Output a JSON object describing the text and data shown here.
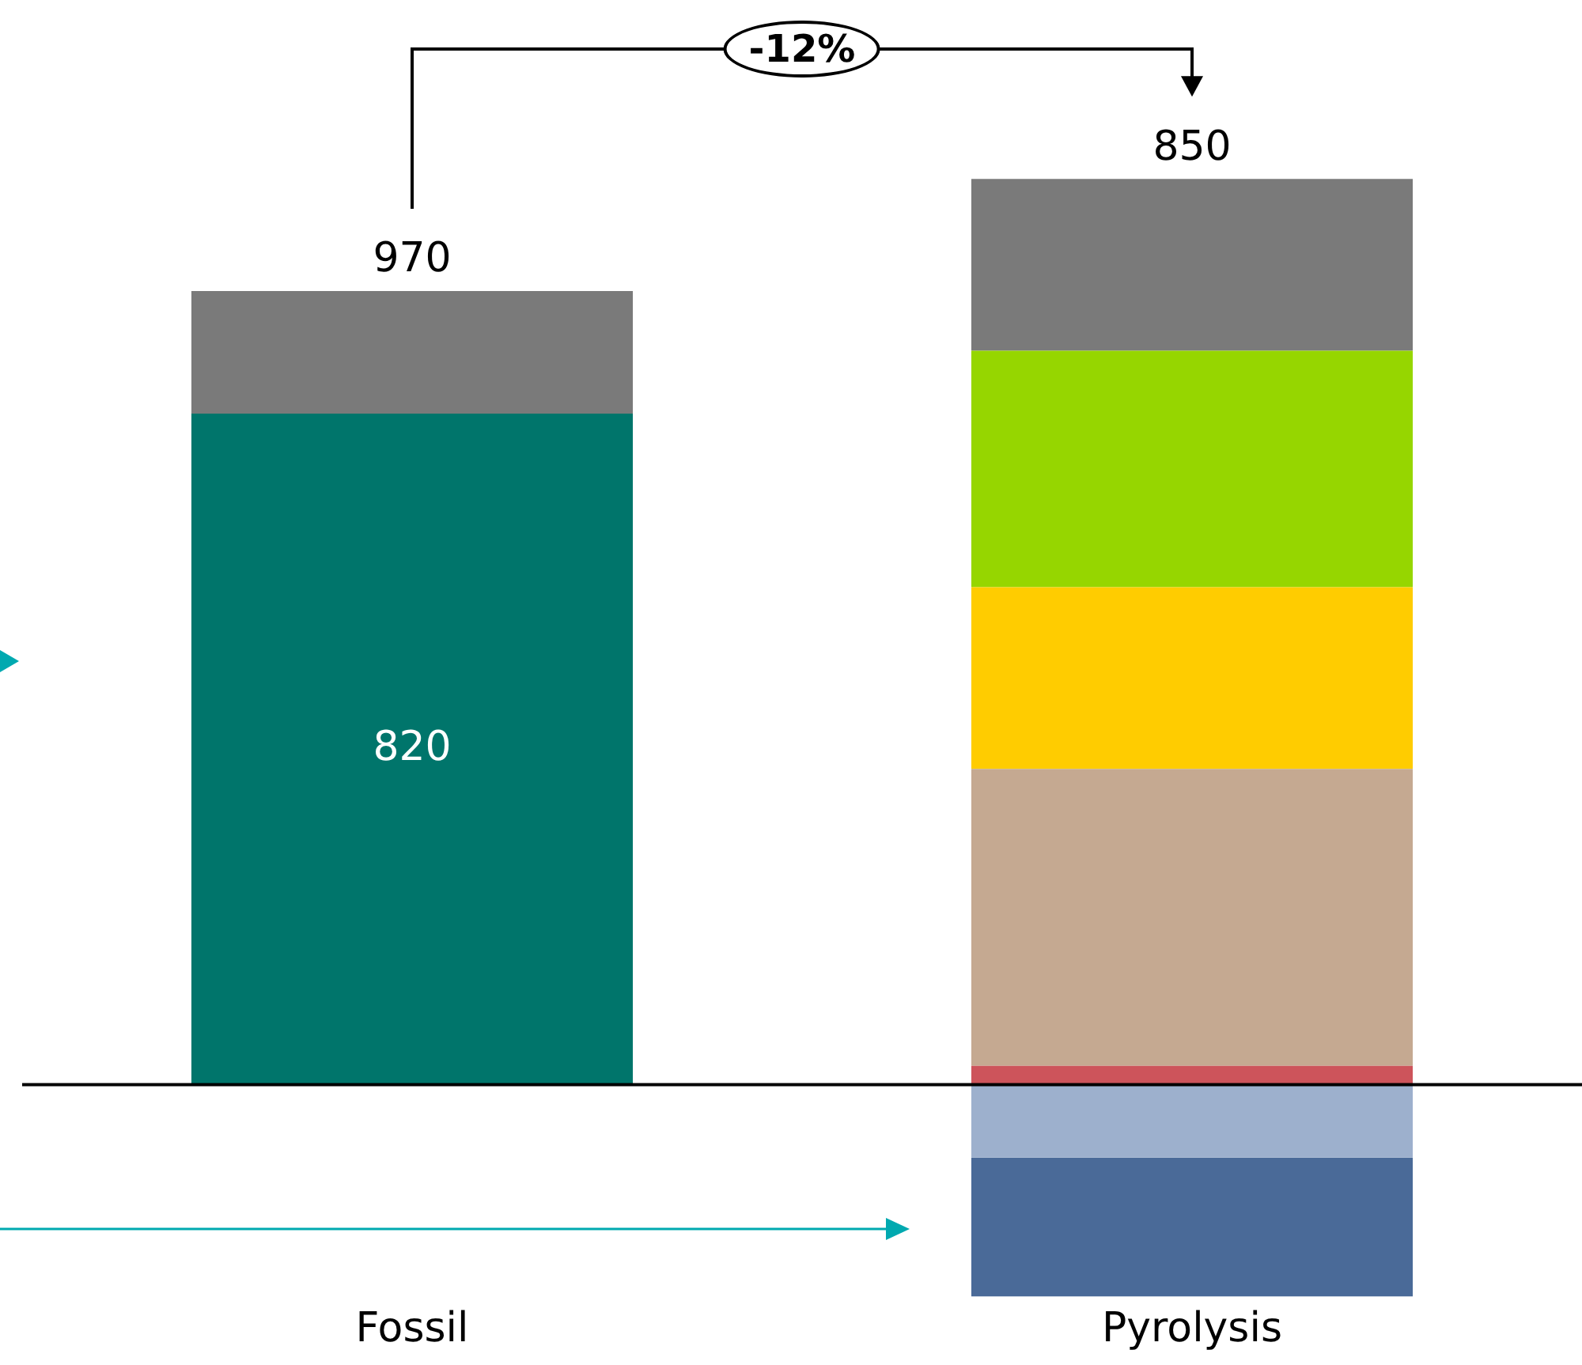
{
  "chart_data": {
    "type": "bar",
    "stacked": true,
    "categories": [
      "Fossil",
      "Pyrolysis"
    ],
    "series": [
      {
        "color": "#00756b",
        "values": [
          820,
          null
        ],
        "value_labels": [
          "820",
          null
        ]
      },
      {
        "color": "#cd545b",
        "values": [
          null,
          23
        ]
      },
      {
        "color": "#c5a991",
        "values": [
          null,
          363
        ]
      },
      {
        "color": "#ffcc00",
        "values": [
          null,
          222
        ]
      },
      {
        "color": "#96d600",
        "values": [
          null,
          289
        ]
      },
      {
        "color": "#7a7a7a",
        "values": [
          150,
          210
        ]
      },
      {
        "color": "#9db0cd",
        "values": [
          null,
          -89
        ]
      },
      {
        "color": "#4a6a98",
        "values": [
          null,
          -170
        ]
      }
    ],
    "totals": [
      "970",
      "850"
    ],
    "annotations": [
      "-12%"
    ],
    "tick_labels": "x",
    "grid": false,
    "legend": false
  }
}
